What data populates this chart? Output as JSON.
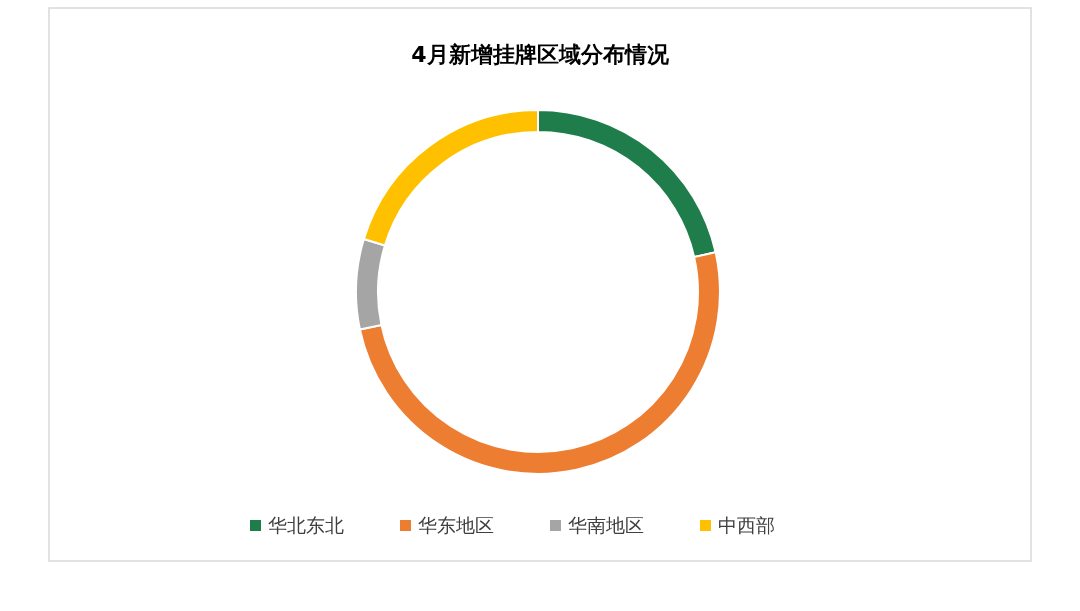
{
  "chart_data": {
    "type": "donut",
    "title": "4月新增挂牌区域分布情况",
    "categories": [
      "华北东北",
      "华东地区",
      "华南地区",
      "中西部"
    ],
    "values": [
      21.5,
      50.2,
      8.0,
      20.3
    ],
    "colors": [
      "#1e7d4a",
      "#ed7d31",
      "#a5a5a5",
      "#ffc000"
    ],
    "legend": "bottom"
  }
}
